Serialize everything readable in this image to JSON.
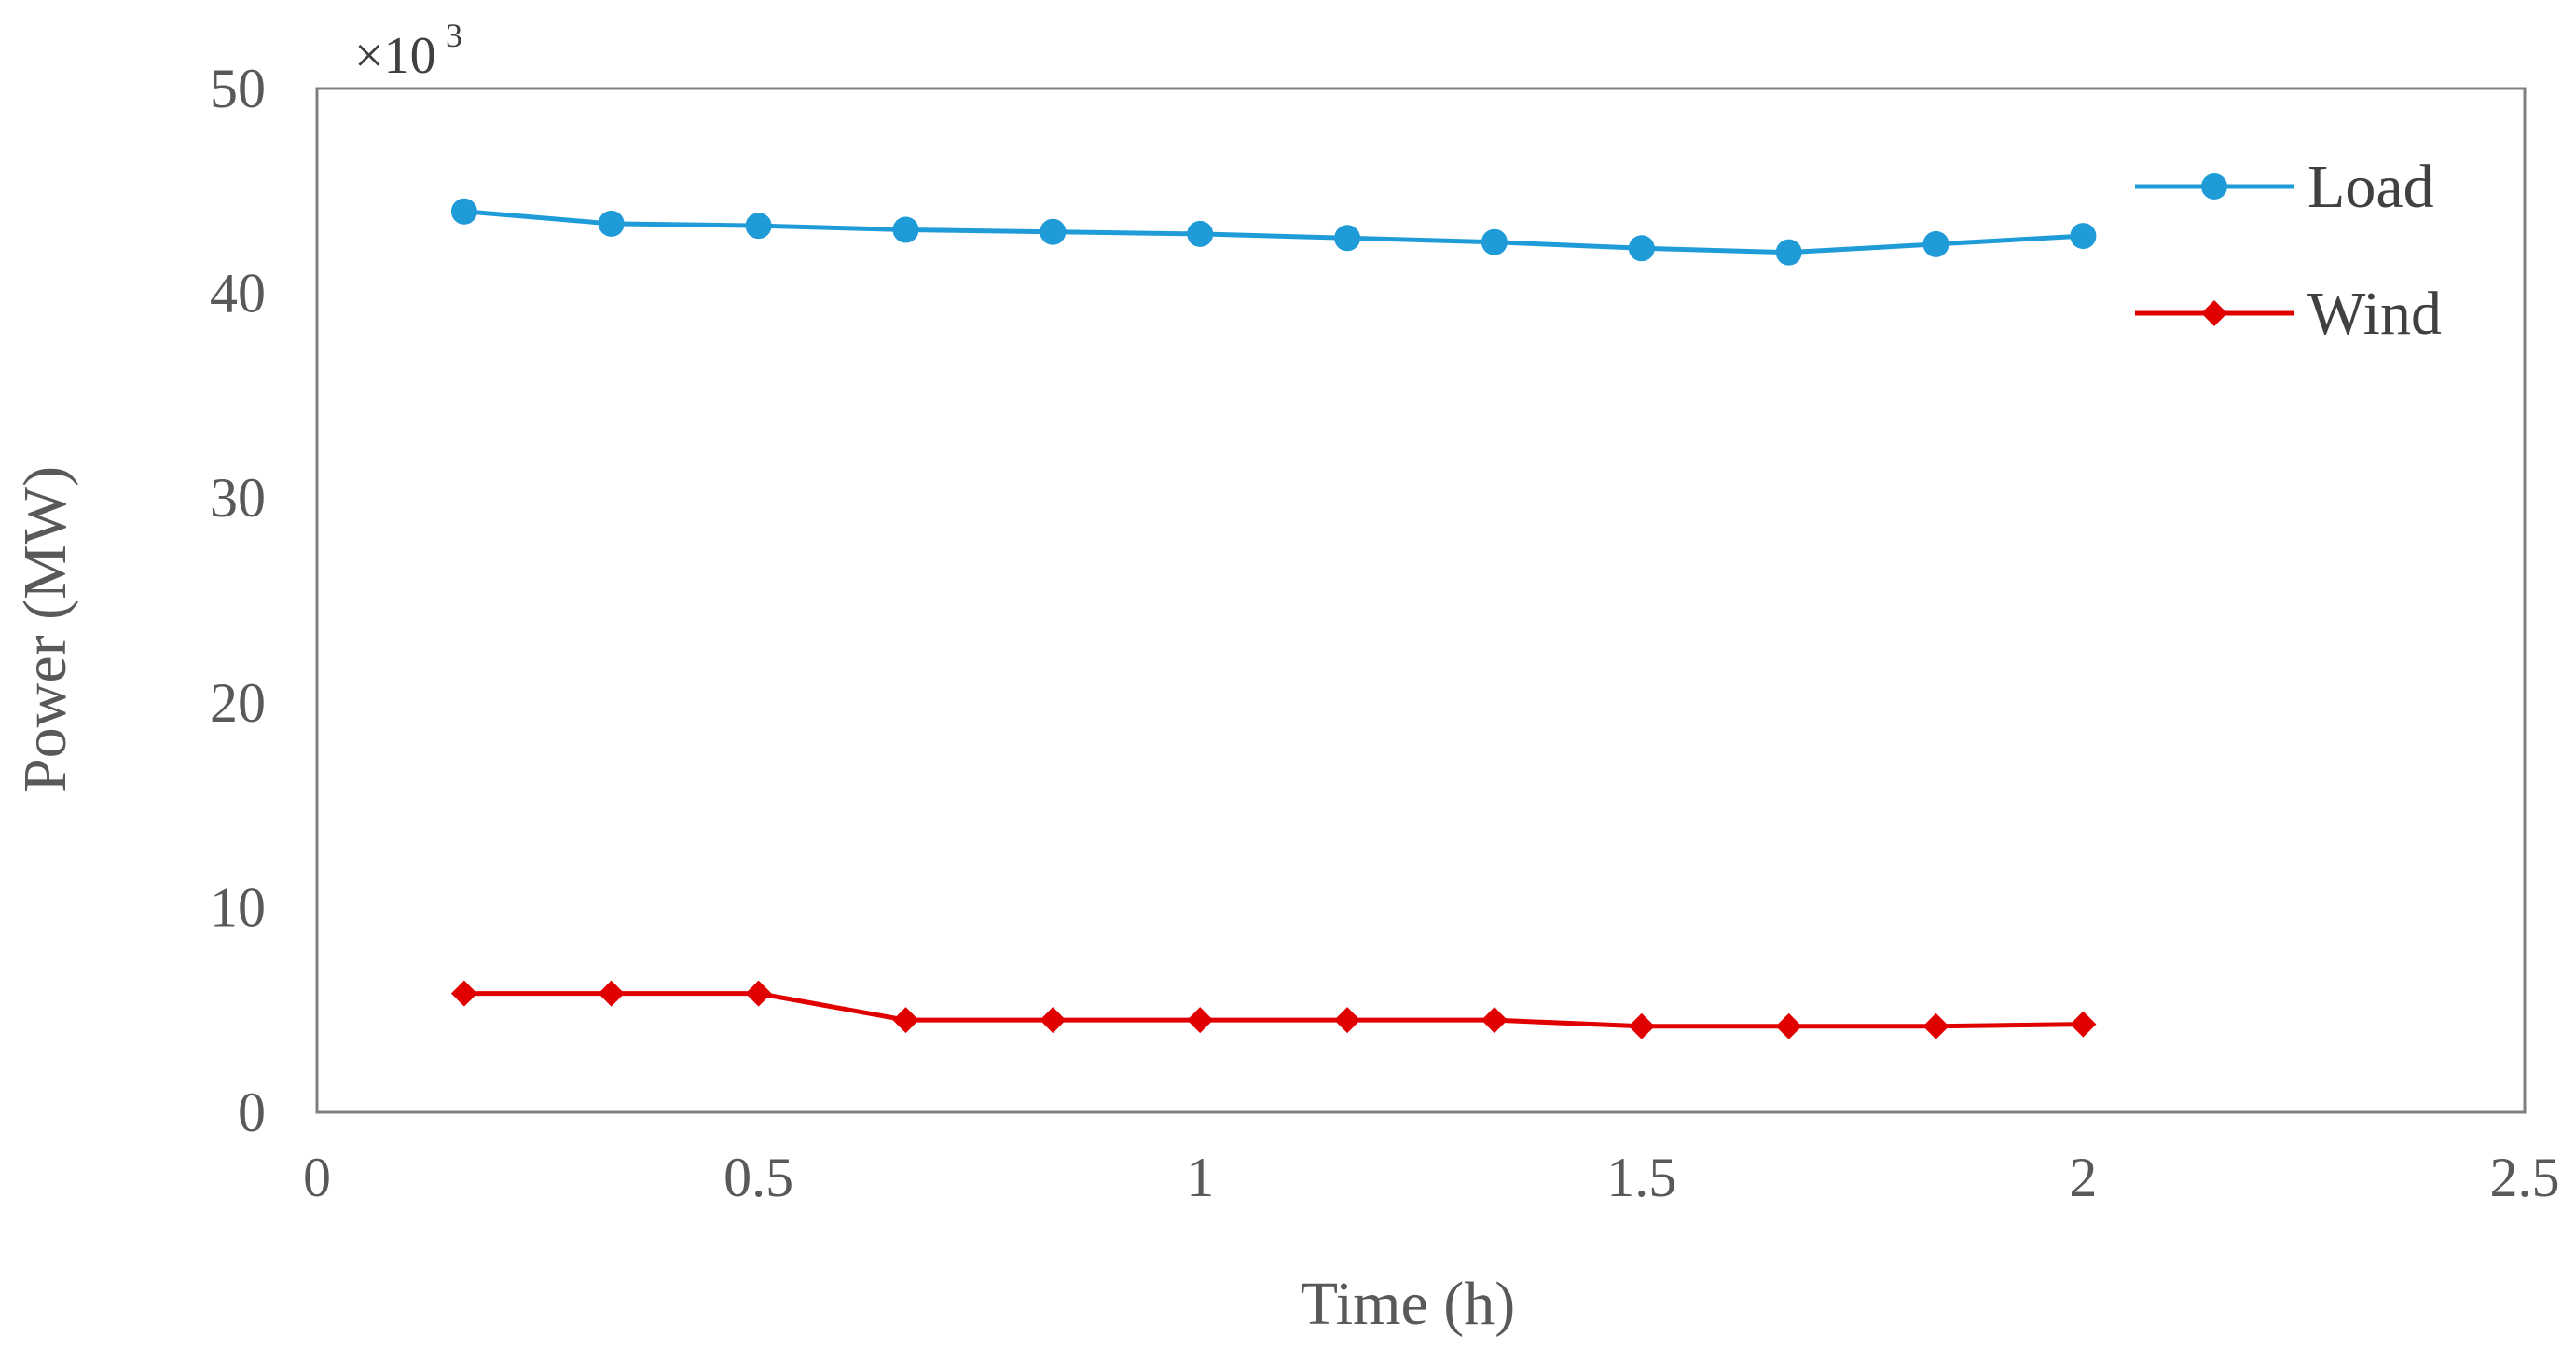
{
  "chart_data": {
    "type": "line",
    "xlabel": "Time (h)",
    "ylabel": "Power (MW)",
    "y_multiplier": "×10",
    "y_multiplier_exp": "3",
    "xlim": [
      0,
      2.5
    ],
    "ylim": [
      0,
      50
    ],
    "x_ticks": [
      "0",
      "0.5",
      "1",
      "1.5",
      "2",
      "2.5"
    ],
    "y_ticks": [
      "0",
      "10",
      "20",
      "30",
      "40",
      "50"
    ],
    "grid": false,
    "legend_position": "top-right",
    "x": [
      0.1667,
      0.3333,
      0.5,
      0.6667,
      0.8333,
      1.0,
      1.1667,
      1.3333,
      1.5,
      1.6667,
      1.8333,
      2.0
    ],
    "series": [
      {
        "name": "Load",
        "color": "#1f9bd7",
        "marker": "circle",
        "values": [
          44.0,
          43.4,
          43.3,
          43.1,
          43.0,
          42.9,
          42.7,
          42.5,
          42.2,
          42.0,
          42.4,
          42.8
        ]
      },
      {
        "name": "Wind",
        "color": "#e00000",
        "marker": "diamond",
        "values": [
          5.8,
          5.8,
          5.8,
          4.5,
          4.5,
          4.5,
          4.5,
          4.5,
          4.2,
          4.2,
          4.2,
          4.3
        ]
      }
    ]
  }
}
